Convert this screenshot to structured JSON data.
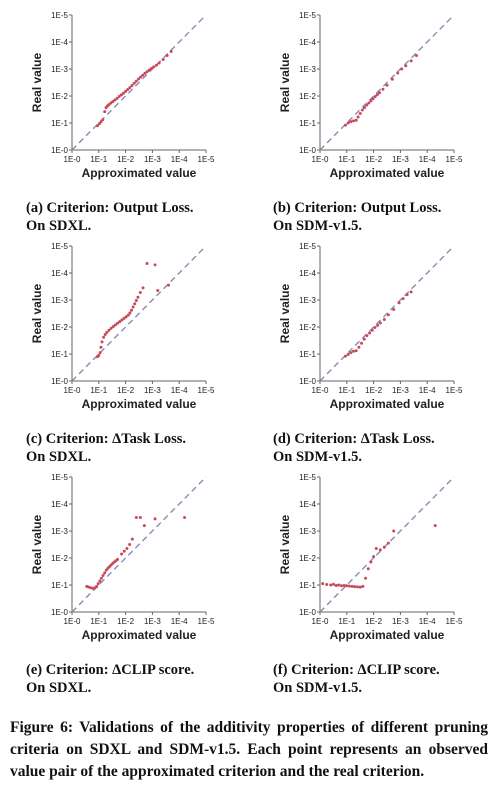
{
  "chart_data": [
    {
      "type": "scatter",
      "id": "a",
      "xlabel": "Approximated value",
      "ylabel": "Real value",
      "x_ticks": [
        "1E-0",
        "1E-1",
        "1E-2",
        "1E-3",
        "1E-4",
        "1E-5"
      ],
      "y_ticks": [
        "1E-5",
        "1E-4",
        "1E-3",
        "1E-2",
        "1E-1",
        "1E-0"
      ],
      "xlim": [
        0,
        5
      ],
      "ylim": [
        0,
        5
      ],
      "scale": "log (orders of magnitude, 1E-k)",
      "reference_line": "y = x (dashed)",
      "caption_line1": "(a) Criterion: Output Loss.",
      "caption_line2": "On SDXL.",
      "points": [
        [
          0.95,
          0.9
        ],
        [
          1.02,
          0.97
        ],
        [
          1.08,
          1.04
        ],
        [
          1.15,
          1.12
        ],
        [
          1.22,
          1.42
        ],
        [
          1.27,
          1.57
        ],
        [
          1.32,
          1.63
        ],
        [
          1.38,
          1.68
        ],
        [
          1.45,
          1.74
        ],
        [
          1.52,
          1.79
        ],
        [
          1.6,
          1.85
        ],
        [
          1.68,
          1.91
        ],
        [
          1.76,
          1.98
        ],
        [
          1.84,
          2.04
        ],
        [
          1.92,
          2.1
        ],
        [
          2.0,
          2.17
        ],
        [
          2.08,
          2.24
        ],
        [
          2.16,
          2.31
        ],
        [
          2.24,
          2.39
        ],
        [
          2.32,
          2.47
        ],
        [
          2.4,
          2.55
        ],
        [
          2.48,
          2.63
        ],
        [
          2.56,
          2.7
        ],
        [
          2.64,
          2.77
        ],
        [
          2.72,
          2.84
        ],
        [
          2.8,
          2.9
        ],
        [
          2.88,
          2.96
        ],
        [
          2.96,
          3.02
        ],
        [
          3.05,
          3.08
        ],
        [
          3.15,
          3.14
        ],
        [
          3.25,
          3.22
        ],
        [
          3.4,
          3.35
        ],
        [
          3.55,
          3.5
        ],
        [
          3.7,
          3.65
        ]
      ]
    },
    {
      "type": "scatter",
      "id": "b",
      "xlabel": "Approximated value",
      "ylabel": "Real value",
      "x_ticks": [
        "1E-0",
        "1E-1",
        "1E-2",
        "1E-3",
        "1E-4",
        "1E-5"
      ],
      "y_ticks": [
        "1E-5",
        "1E-4",
        "1E-3",
        "1E-2",
        "1E-1",
        "1E-0"
      ],
      "xlim": [
        0,
        5
      ],
      "ylim": [
        0,
        5
      ],
      "scale": "log (orders of magnitude, 1E-k)",
      "reference_line": "y = x (dashed)",
      "caption_line1": "(b) Criterion: Output Loss.",
      "caption_line2": "On SDM-v1.5.",
      "points": [
        [
          0.95,
          0.92
        ],
        [
          1.05,
          1.0
        ],
        [
          1.15,
          1.05
        ],
        [
          1.25,
          1.08
        ],
        [
          1.35,
          1.1
        ],
        [
          1.42,
          1.22
        ],
        [
          1.5,
          1.35
        ],
        [
          1.58,
          1.48
        ],
        [
          1.66,
          1.57
        ],
        [
          1.74,
          1.66
        ],
        [
          1.82,
          1.74
        ],
        [
          1.9,
          1.82
        ],
        [
          1.98,
          1.9
        ],
        [
          2.06,
          1.98
        ],
        [
          2.14,
          2.05
        ],
        [
          2.22,
          2.12
        ],
        [
          2.35,
          2.25
        ],
        [
          2.5,
          2.4
        ],
        [
          2.7,
          2.62
        ],
        [
          2.9,
          2.85
        ],
        [
          3.05,
          3.0
        ],
        [
          3.2,
          3.12
        ],
        [
          3.4,
          3.3
        ],
        [
          3.6,
          3.5
        ]
      ]
    },
    {
      "type": "scatter",
      "id": "c",
      "xlabel": "Approximated value",
      "ylabel": "Real value",
      "x_ticks": [
        "1E-0",
        "1E-1",
        "1E-2",
        "1E-3",
        "1E-4",
        "1E-5"
      ],
      "y_ticks": [
        "1E-5",
        "1E-4",
        "1E-3",
        "1E-2",
        "1E-1",
        "1E-0"
      ],
      "xlim": [
        0,
        5
      ],
      "ylim": [
        0,
        5
      ],
      "scale": "log (orders of magnitude, 1E-k)",
      "reference_line": "y = x (dashed)",
      "caption_line1": "(c) Criterion: ΔTask Loss.",
      "caption_line2": "On SDXL.",
      "points": [
        [
          0.95,
          0.9
        ],
        [
          1.0,
          0.95
        ],
        [
          1.05,
          1.05
        ],
        [
          1.08,
          1.25
        ],
        [
          1.12,
          1.45
        ],
        [
          1.18,
          1.62
        ],
        [
          1.24,
          1.72
        ],
        [
          1.3,
          1.8
        ],
        [
          1.38,
          1.88
        ],
        [
          1.46,
          1.95
        ],
        [
          1.54,
          2.02
        ],
        [
          1.62,
          2.08
        ],
        [
          1.7,
          2.14
        ],
        [
          1.78,
          2.2
        ],
        [
          1.86,
          2.26
        ],
        [
          1.94,
          2.32
        ],
        [
          2.02,
          2.38
        ],
        [
          2.1,
          2.44
        ],
        [
          2.16,
          2.52
        ],
        [
          2.22,
          2.62
        ],
        [
          2.28,
          2.74
        ],
        [
          2.34,
          2.86
        ],
        [
          2.4,
          2.98
        ],
        [
          2.46,
          3.1
        ],
        [
          2.55,
          3.28
        ],
        [
          2.65,
          3.45
        ],
        [
          2.8,
          4.35
        ],
        [
          3.1,
          4.3
        ],
        [
          3.2,
          3.35
        ],
        [
          3.6,
          3.55
        ]
      ]
    },
    {
      "type": "scatter",
      "id": "d",
      "xlabel": "Approximated value",
      "ylabel": "Real value",
      "x_ticks": [
        "1E-0",
        "1E-1",
        "1E-2",
        "1E-3",
        "1E-4",
        "1E-5"
      ],
      "y_ticks": [
        "1E-5",
        "1E-4",
        "1E-3",
        "1E-2",
        "1E-1",
        "1E-0"
      ],
      "xlim": [
        0,
        5
      ],
      "ylim": [
        0,
        5
      ],
      "scale": "log (orders of magnitude, 1E-k)",
      "reference_line": "y = x (dashed)",
      "caption_line1": "(d) Criterion: ΔTask Loss.",
      "caption_line2": "On SDM-v1.5.",
      "points": [
        [
          0.95,
          0.92
        ],
        [
          1.05,
          0.98
        ],
        [
          1.15,
          1.05
        ],
        [
          1.25,
          1.1
        ],
        [
          1.35,
          1.12
        ],
        [
          1.45,
          1.25
        ],
        [
          1.55,
          1.4
        ],
        [
          1.65,
          1.55
        ],
        [
          1.75,
          1.68
        ],
        [
          1.85,
          1.78
        ],
        [
          1.95,
          1.88
        ],
        [
          2.05,
          1.98
        ],
        [
          2.15,
          2.06
        ],
        [
          2.25,
          2.15
        ],
        [
          2.4,
          2.28
        ],
        [
          2.55,
          2.45
        ],
        [
          2.75,
          2.65
        ],
        [
          2.95,
          2.9
        ],
        [
          3.1,
          3.05
        ],
        [
          3.25,
          3.2
        ],
        [
          3.4,
          3.3
        ]
      ]
    },
    {
      "type": "scatter",
      "id": "e",
      "xlabel": "Approximated value",
      "ylabel": "Real value",
      "x_ticks": [
        "1E-0",
        "1E-1",
        "1E-2",
        "1E-3",
        "1E-4",
        "1E-5"
      ],
      "y_ticks": [
        "1E-5",
        "1E-4",
        "1E-3",
        "1E-2",
        "1E-1",
        "1E-0"
      ],
      "xlim": [
        0,
        5
      ],
      "ylim": [
        0,
        5
      ],
      "scale": "log (orders of magnitude, 1E-k)",
      "reference_line": "y = x (dashed)",
      "caption_line1": "(e) Criterion: ΔCLIP score.",
      "caption_line2": "On SDXL.",
      "points": [
        [
          0.55,
          0.95
        ],
        [
          0.62,
          0.92
        ],
        [
          0.7,
          0.9
        ],
        [
          0.78,
          0.88
        ],
        [
          0.86,
          0.9
        ],
        [
          0.92,
          0.95
        ],
        [
          0.98,
          1.05
        ],
        [
          1.04,
          1.15
        ],
        [
          1.1,
          1.25
        ],
        [
          1.16,
          1.35
        ],
        [
          1.22,
          1.45
        ],
        [
          1.28,
          1.55
        ],
        [
          1.34,
          1.62
        ],
        [
          1.4,
          1.68
        ],
        [
          1.46,
          1.74
        ],
        [
          1.52,
          1.8
        ],
        [
          1.58,
          1.85
        ],
        [
          1.64,
          1.9
        ],
        [
          1.7,
          1.95
        ],
        [
          1.85,
          2.15
        ],
        [
          1.95,
          2.25
        ],
        [
          2.05,
          2.35
        ],
        [
          2.15,
          2.5
        ],
        [
          2.25,
          2.7
        ],
        [
          2.4,
          3.5
        ],
        [
          2.55,
          3.5
        ],
        [
          2.7,
          3.2
        ],
        [
          3.1,
          3.45
        ],
        [
          4.2,
          3.5
        ]
      ]
    },
    {
      "type": "scatter",
      "id": "f",
      "xlabel": "Approximated value",
      "ylabel": "Real value",
      "x_ticks": [
        "1E-0",
        "1E-1",
        "1E-2",
        "1E-3",
        "1E-4",
        "1E-5"
      ],
      "y_ticks": [
        "1E-5",
        "1E-4",
        "1E-3",
        "1E-2",
        "1E-1",
        "1E-0"
      ],
      "xlim": [
        0,
        5
      ],
      "ylim": [
        0,
        5
      ],
      "scale": "log (orders of magnitude, 1E-k)",
      "reference_line": "y = x (dashed)",
      "caption_line1": "(f) Criterion: ΔCLIP score.",
      "caption_line2": "On SDM-v1.5.",
      "points": [
        [
          0.1,
          1.05
        ],
        [
          0.25,
          1.02
        ],
        [
          0.4,
          1.0
        ],
        [
          0.5,
          1.03
        ],
        [
          0.6,
          0.98
        ],
        [
          0.7,
          1.0
        ],
        [
          0.8,
          0.97
        ],
        [
          0.9,
          0.98
        ],
        [
          1.0,
          0.97
        ],
        [
          1.1,
          0.96
        ],
        [
          1.2,
          0.95
        ],
        [
          1.3,
          0.94
        ],
        [
          1.4,
          0.93
        ],
        [
          1.5,
          0.92
        ],
        [
          1.6,
          0.95
        ],
        [
          1.7,
          1.25
        ],
        [
          1.8,
          1.6
        ],
        [
          1.9,
          1.85
        ],
        [
          2.0,
          2.05
        ],
        [
          2.1,
          2.35
        ],
        [
          2.25,
          2.3
        ],
        [
          2.4,
          2.4
        ],
        [
          2.55,
          2.55
        ],
        [
          2.75,
          3.0
        ],
        [
          4.3,
          3.2
        ]
      ]
    }
  ],
  "figure_caption": "Figure 6: Validations of the additivity properties of different pruning criteria on SDXL and SDM-v1.5. Each point represents an observed value pair of the approximated criterion and the real criterion."
}
